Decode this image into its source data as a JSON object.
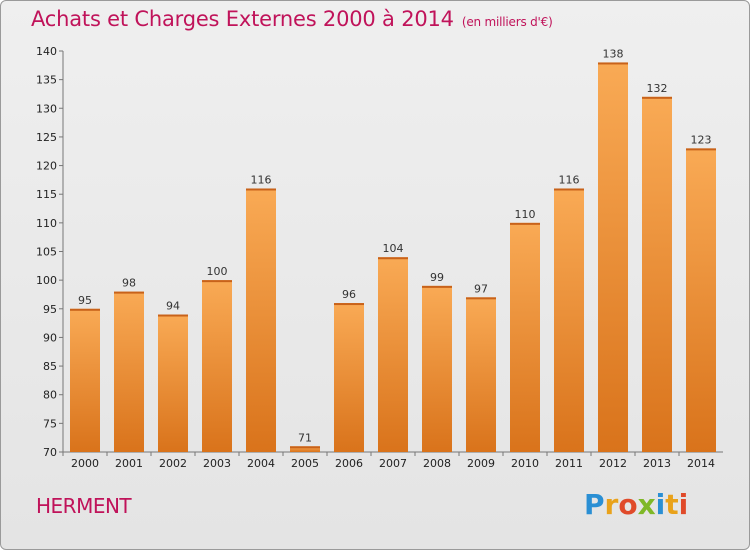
{
  "title": "Achats et Charges Externes 2000 à 2014",
  "unit": "(en milliers d'€)",
  "commune": "HERMENT",
  "logo": [
    "P",
    "r",
    "o",
    "x",
    "i",
    "t",
    "i"
  ],
  "colors": {
    "title": "#c0135a",
    "bar_top": "#f9aa55",
    "bar_bottom": "#d9731b"
  },
  "chart_data": {
    "type": "bar",
    "categories": [
      "2000",
      "2001",
      "2002",
      "2003",
      "2004",
      "2005",
      "2006",
      "2007",
      "2008",
      "2009",
      "2010",
      "2011",
      "2012",
      "2013",
      "2014"
    ],
    "values": [
      95,
      98,
      94,
      100,
      116,
      71,
      96,
      104,
      99,
      97,
      110,
      116,
      138,
      132,
      123
    ],
    "ylim": [
      70,
      140
    ],
    "yticks": [
      70,
      75,
      80,
      85,
      90,
      95,
      100,
      105,
      110,
      115,
      120,
      125,
      130,
      135,
      140
    ],
    "grid": false,
    "data_labels": true
  }
}
